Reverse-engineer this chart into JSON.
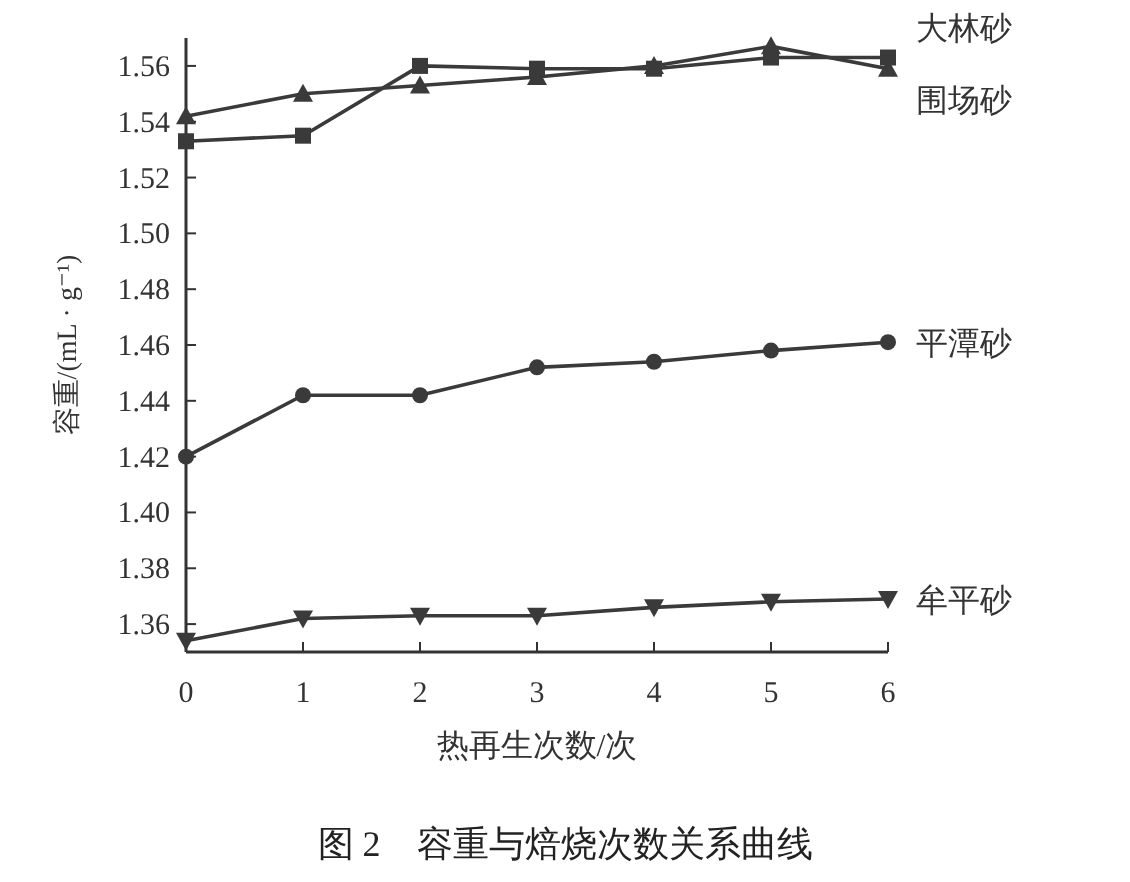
{
  "chart_data": {
    "type": "line",
    "title": "图 2　容重与焙烧次数关系曲线",
    "xlabel": "热再生次数/次",
    "ylabel": "容重/(mL · g⁻¹)",
    "x": [
      0,
      1,
      2,
      3,
      4,
      5,
      6
    ],
    "xlim": [
      0,
      6
    ],
    "xticks": [
      0,
      1,
      2,
      3,
      4,
      5,
      6
    ],
    "ylim": [
      1.35,
      1.57
    ],
    "yticks": [
      1.36,
      1.38,
      {
        "value": 1.4,
        "label": "1.40"
      },
      1.42,
      1.44,
      1.46,
      1.48,
      {
        "value": 1.5,
        "label": "1.50"
      },
      1.52,
      1.54,
      1.56
    ],
    "grid": false,
    "line_style": "solid",
    "series": [
      {
        "name": "围场砂",
        "color": "#3a3a3a",
        "marker": "triangle",
        "values": [
          1.542,
          1.55,
          1.553,
          1.556,
          1.56,
          1.567,
          1.559
        ]
      },
      {
        "name": "大林砂",
        "color": "#3a3a3a",
        "marker": "square",
        "values": [
          1.533,
          1.535,
          1.56,
          1.559,
          1.559,
          1.563,
          1.563
        ]
      },
      {
        "name": "平潭砂",
        "color": "#3a3a3a",
        "marker": "circle",
        "values": [
          1.42,
          1.442,
          1.442,
          1.452,
          1.454,
          1.458,
          1.461
        ]
      },
      {
        "name": "牟平砂",
        "color": "#3a3a3a",
        "marker": "triangle_down",
        "values": [
          1.354,
          1.362,
          1.363,
          1.363,
          1.366,
          1.368,
          1.369
        ]
      }
    ]
  }
}
